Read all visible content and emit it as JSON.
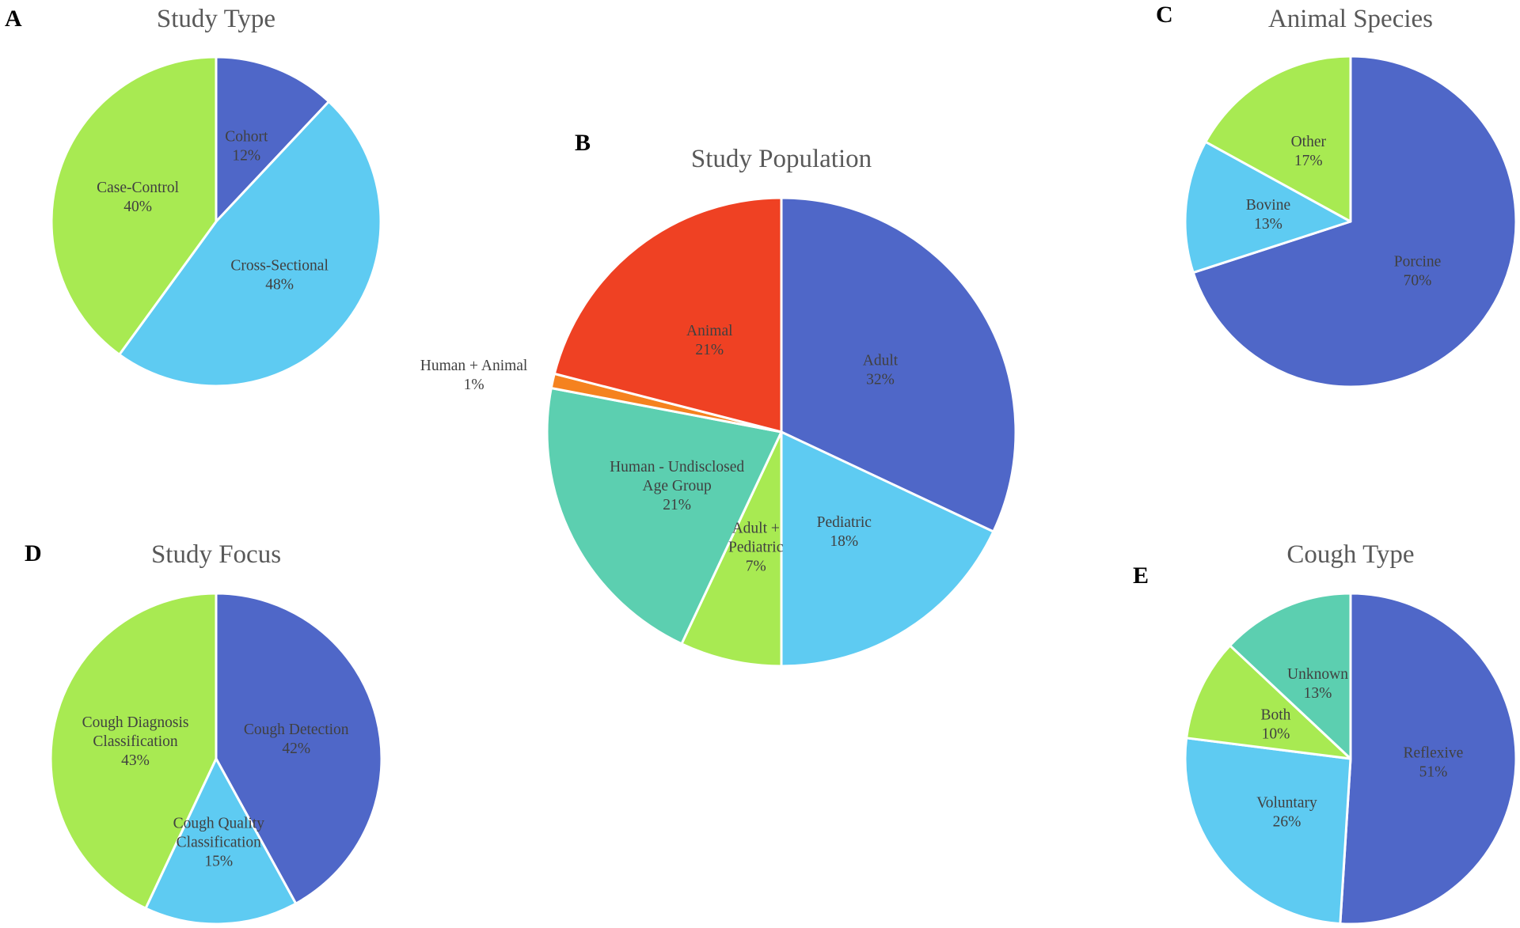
{
  "colors": {
    "blue": "#4F67C8",
    "lightblue": "#5ECBF2",
    "green": "#A8EA52",
    "teal": "#5CCFB0",
    "red": "#EF4123",
    "orange": "#F5821F"
  },
  "chart_data": [
    {
      "id": "A",
      "panel_letter": "A",
      "type": "pie",
      "title": "Study Type",
      "slices": [
        {
          "label": "Cohort",
          "value": 12,
          "pct": "12%",
          "color": "blue",
          "wrap": 0
        },
        {
          "label": "Cross-Sectional",
          "value": 48,
          "pct": "48%",
          "color": "lightblue",
          "wrap": 0
        },
        {
          "label": "Case-Control",
          "value": 40,
          "pct": "40%",
          "color": "green",
          "wrap": 0
        }
      ]
    },
    {
      "id": "B",
      "panel_letter": "B",
      "type": "pie",
      "title": "Study Population",
      "slices": [
        {
          "label": "Adult",
          "value": 32,
          "pct": "32%",
          "color": "blue",
          "wrap": 0
        },
        {
          "label": "Pediatric",
          "value": 18,
          "pct": "18%",
          "color": "lightblue",
          "wrap": 0
        },
        {
          "label": "Adult + Pediatric",
          "value": 7,
          "pct": "7%",
          "color": "green",
          "wrap": 2
        },
        {
          "label": "Human - Undisclosed Age Group",
          "value": 21,
          "pct": "21%",
          "color": "teal",
          "wrap": 3
        },
        {
          "label": "Human + Animal",
          "value": 1,
          "pct": "1%",
          "color": "orange",
          "wrap": 0,
          "outside": true
        },
        {
          "label": "Animal",
          "value": 21,
          "pct": "21%",
          "color": "red",
          "wrap": 0
        }
      ]
    },
    {
      "id": "C",
      "panel_letter": "C",
      "type": "pie",
      "title": "Animal Species",
      "slices": [
        {
          "label": "Porcine",
          "value": 70,
          "pct": "70%",
          "color": "blue",
          "wrap": 0
        },
        {
          "label": "Bovine",
          "value": 13,
          "pct": "13%",
          "color": "lightblue",
          "wrap": 0
        },
        {
          "label": "Other",
          "value": 17,
          "pct": "17%",
          "color": "green",
          "wrap": 0
        }
      ]
    },
    {
      "id": "D",
      "panel_letter": "D",
      "type": "pie",
      "title": "Study Focus",
      "slices": [
        {
          "label": "Cough Detection",
          "value": 42,
          "pct": "42%",
          "color": "blue",
          "wrap": 0
        },
        {
          "label": "Cough Quality Classification",
          "value": 15,
          "pct": "15%",
          "color": "lightblue",
          "wrap": 2
        },
        {
          "label": "Cough Diagnosis Classification",
          "value": 43,
          "pct": "43%",
          "color": "green",
          "wrap": 2
        }
      ]
    },
    {
      "id": "E",
      "panel_letter": "E",
      "type": "pie",
      "title": "Cough Type",
      "slices": [
        {
          "label": "Reflexive",
          "value": 51,
          "pct": "51%",
          "color": "blue",
          "wrap": 0
        },
        {
          "label": "Voluntary",
          "value": 26,
          "pct": "26%",
          "color": "lightblue",
          "wrap": 0
        },
        {
          "label": "Both",
          "value": 10,
          "pct": "10%",
          "color": "green",
          "wrap": 0
        },
        {
          "label": "Unknown",
          "value": 13,
          "pct": "13%",
          "color": "teal",
          "wrap": 0
        }
      ]
    }
  ]
}
